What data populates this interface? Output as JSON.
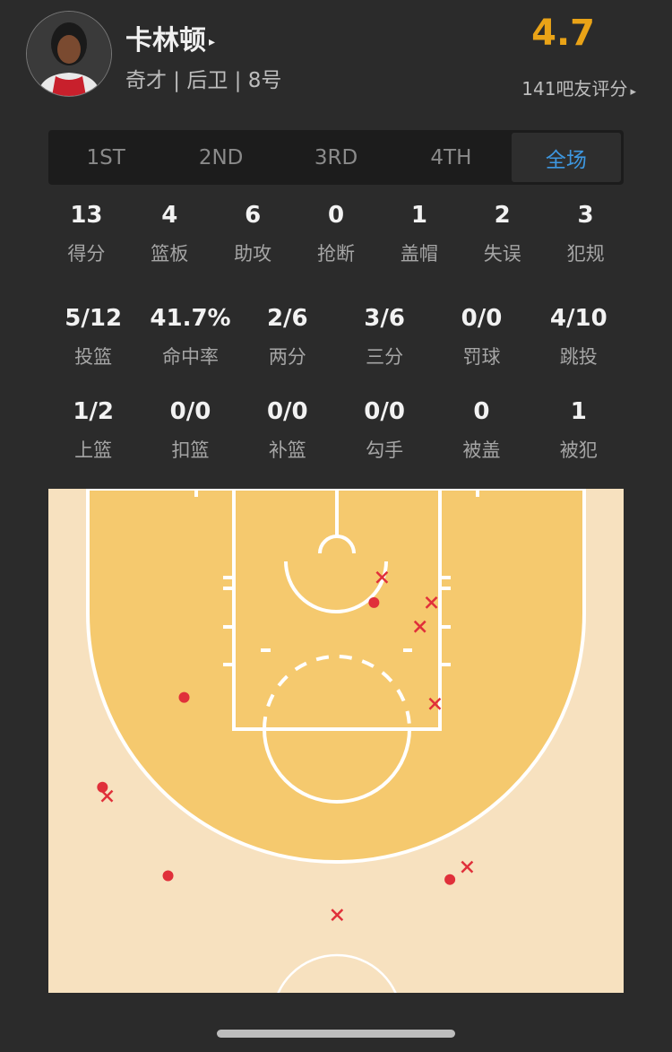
{
  "player": {
    "name": "卡林顿",
    "info": "奇才 | 后卫 | 8号",
    "rating": "4.7",
    "raters": "141吧友评分",
    "arrow": "▸"
  },
  "tabs": [
    {
      "label": "1ST",
      "active": false
    },
    {
      "label": "2ND",
      "active": false
    },
    {
      "label": "3RD",
      "active": false
    },
    {
      "label": "4TH",
      "active": false
    },
    {
      "label": "全场",
      "active": true
    }
  ],
  "stats_row1": [
    {
      "value": "13",
      "label": "得分"
    },
    {
      "value": "4",
      "label": "篮板"
    },
    {
      "value": "6",
      "label": "助攻"
    },
    {
      "value": "0",
      "label": "抢断"
    },
    {
      "value": "1",
      "label": "盖帽"
    },
    {
      "value": "2",
      "label": "失误"
    },
    {
      "value": "3",
      "label": "犯规"
    }
  ],
  "stats_row2": [
    {
      "value": "5/12",
      "label": "投篮"
    },
    {
      "value": "41.7%",
      "label": "命中率"
    },
    {
      "value": "2/6",
      "label": "两分"
    },
    {
      "value": "3/6",
      "label": "三分"
    },
    {
      "value": "0/0",
      "label": "罚球"
    },
    {
      "value": "4/10",
      "label": "跳投"
    }
  ],
  "stats_row3": [
    {
      "value": "1/2",
      "label": "上篮"
    },
    {
      "value": "0/0",
      "label": "扣篮"
    },
    {
      "value": "0/0",
      "label": "补篮"
    },
    {
      "value": "0/0",
      "label": "勾手"
    },
    {
      "value": "0",
      "label": "被盖"
    },
    {
      "value": "1",
      "label": "被犯"
    }
  ],
  "shot_chart": {
    "colors": {
      "paint_area": "#f5c96e",
      "outer_floor": "#f7e1bf",
      "lines": "#ffffff",
      "shot": "#e0303a"
    },
    "units": "feet from basket line center / baseline",
    "shots": [
      {
        "x": 3.3,
        "y": 9.0,
        "made": true
      },
      {
        "x": -13.2,
        "y": 16.5,
        "made": true
      },
      {
        "x": -20.3,
        "y": 23.6,
        "made": true
      },
      {
        "x": -14.6,
        "y": 30.6,
        "made": true
      },
      {
        "x": 9.9,
        "y": 30.9,
        "made": true
      },
      {
        "x": 4.0,
        "y": 7.0,
        "made": false
      },
      {
        "x": 8.3,
        "y": 9.0,
        "made": false
      },
      {
        "x": 7.3,
        "y": 10.9,
        "made": false
      },
      {
        "x": 8.6,
        "y": 17.0,
        "made": false
      },
      {
        "x": -19.9,
        "y": 24.3,
        "made": false
      },
      {
        "x": 11.4,
        "y": 29.9,
        "made": false
      },
      {
        "x": 0.1,
        "y": 33.7,
        "made": false
      }
    ]
  }
}
